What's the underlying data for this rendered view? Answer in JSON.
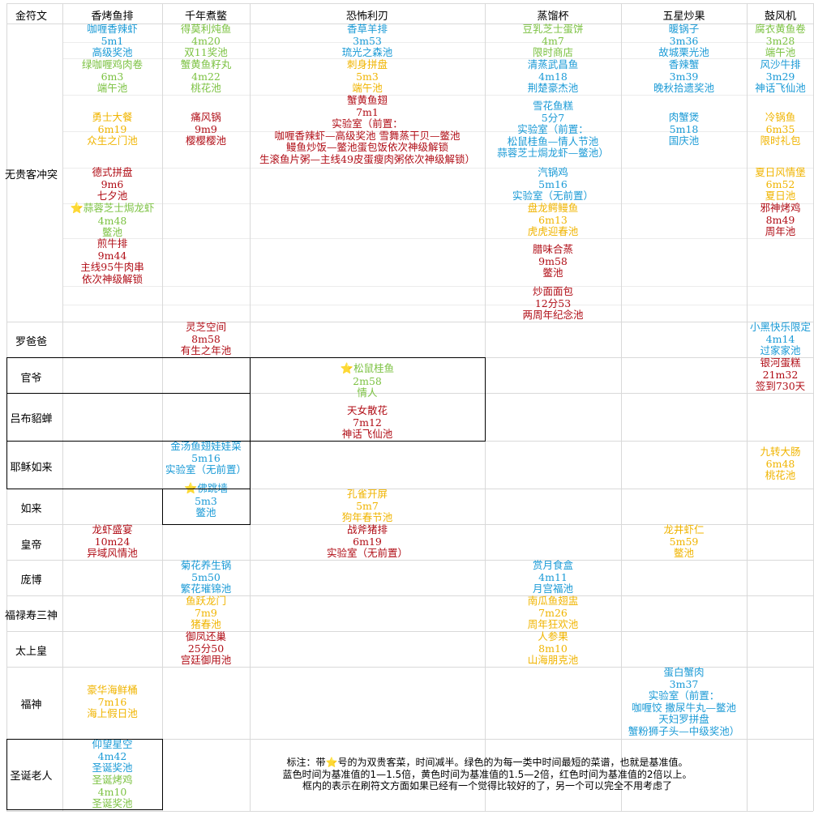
{
  "colors": {
    "blue": "#1a9ad6",
    "green": "#7cc242",
    "gold": "#f0b400",
    "red": "#b00d16",
    "star": "#f5c518",
    "grid": "#d9d9d9"
  },
  "header": {
    "corner": "金符文",
    "columns": [
      "香烤鱼排",
      "千年煮鳖",
      "恐怖利刃",
      "蒸馏杯",
      "五星炒果",
      "鼓风机"
    ]
  },
  "rows": [
    "无贵客冲突",
    "罗爸爸",
    "官爷",
    "吕布貂蝉",
    "耶稣如来",
    "如来",
    "皇帝",
    "庞博",
    "福禄寿三神",
    "太上皇",
    "福神",
    "圣诞老人"
  ],
  "entries": [
    {
      "color": "blue",
      "lines": [
        "咖喱香辣虾",
        "5m1",
        "高级奖池"
      ]
    },
    {
      "color": "green",
      "lines": [
        "绿咖喱鸡肉卷",
        "6m3",
        "端午池"
      ]
    },
    {
      "color": "gold",
      "lines": [
        "勇士大餐",
        "6m19",
        "众生之门池"
      ]
    },
    {
      "color": "red",
      "lines": [
        "德式拼盘",
        "9m6",
        "七夕池"
      ]
    },
    {
      "color": "green",
      "star": true,
      "lines": [
        "蒜蓉芝士焗龙虾",
        "4m48",
        "鳖池"
      ]
    },
    {
      "color": "red",
      "lines": [
        "煎牛排",
        "9m44",
        "主线95牛肉串",
        "依次神级解锁"
      ]
    },
    {
      "color": "green",
      "lines": [
        "得莫利炖鱼",
        "4m20",
        "双11奖池"
      ]
    },
    {
      "color": "green",
      "lines": [
        "蟹黄鱼籽丸",
        "4m22",
        "桃花池"
      ]
    },
    {
      "color": "red",
      "lines": [
        "痛风锅",
        "9m9",
        "樱樱樱池"
      ]
    },
    {
      "color": "blue",
      "lines": [
        "香草羊排",
        "3m53",
        "琉光之森池"
      ]
    },
    {
      "color": "gold",
      "lines": [
        "刺身拼盘",
        "5m3",
        "端午池"
      ]
    },
    {
      "color": "red",
      "lines": [
        "蟹黄鱼翅",
        "7m1",
        "实验室（前置：",
        "咖喱香辣虾—高级奖池 雪舞蒸干贝—鳖池",
        "鳗鱼炒饭—鳖池蛋包饭依次神级解锁",
        "生滚鱼片粥—主线49皮蛋瘦肉粥依次神级解锁）"
      ]
    },
    {
      "color": "green",
      "lines": [
        "豆乳芝士蛋饼",
        "4m7",
        "限时商店"
      ]
    },
    {
      "color": "blue",
      "lines": [
        "清蒸武昌鱼",
        "4m18",
        "荆楚豪杰池"
      ]
    },
    {
      "color": "blue",
      "lines": [
        "雪花鱼糕",
        "5分7",
        "实验室（前置：",
        "松鼠桂鱼—情人节池",
        "蒜蓉芝士焗龙虾—鳖池）"
      ]
    },
    {
      "color": "blue",
      "lines": [
        "汽锅鸡",
        "5m16",
        "实验室（无前置）"
      ]
    },
    {
      "color": "gold",
      "lines": [
        "盘龙鳄鳗鱼",
        "6m13",
        "虎虎迎春池"
      ]
    },
    {
      "color": "red",
      "lines": [
        "腊味合蒸",
        "9m58",
        "鳖池"
      ]
    },
    {
      "color": "red",
      "lines": [
        "炒面面包",
        "12分53",
        "两周年纪念池"
      ]
    },
    {
      "color": "blue",
      "lines": [
        "暖锅子",
        "3m36",
        "故城栗光池"
      ]
    },
    {
      "color": "blue",
      "lines": [
        "香辣蟹",
        "3m39",
        "晚秋拾遗奖池"
      ]
    },
    {
      "color": "blue",
      "lines": [
        "肉蟹煲",
        "5m18",
        "国庆池"
      ]
    },
    {
      "color": "green",
      "lines": [
        "腐衣黄鱼卷",
        "3m28",
        "端午池"
      ]
    },
    {
      "color": "blue",
      "lines": [
        "风沙牛排",
        "3m29",
        "神话飞仙池"
      ]
    },
    {
      "color": "gold",
      "lines": [
        "冷锅鱼",
        "6m35",
        "限时礼包"
      ]
    },
    {
      "color": "gold",
      "lines": [
        "夏日风情堡",
        "6m52",
        "夏日池"
      ]
    },
    {
      "color": "red",
      "lines": [
        "邪神烤鸡",
        "8m49",
        "周年池"
      ]
    },
    {
      "color": "red",
      "lines": [
        "灵芝空间",
        "8m58",
        "有生之年池"
      ]
    },
    {
      "color": "blue",
      "lines": [
        "小黑快乐限定",
        "4m14",
        "过家家池"
      ]
    },
    {
      "color": "red",
      "lines": [
        "银河蛋糕",
        "21m32",
        "签到730天"
      ]
    },
    {
      "color": "green",
      "star": true,
      "lines": [
        "松鼠桂鱼",
        "2m58",
        "情人"
      ]
    },
    {
      "color": "red",
      "lines": [
        "天女散花",
        "7m12",
        "神话飞仙池"
      ]
    },
    {
      "color": "blue",
      "lines": [
        "金汤鱼翅娃娃菜",
        "5m16",
        "实验室（无前置）"
      ]
    },
    {
      "color": "gold",
      "lines": [
        "九转大肠",
        "6m48",
        "桃花池"
      ]
    },
    {
      "color": "blue",
      "star": true,
      "lines": [
        "佛跳墙",
        "5m3",
        "鳖池"
      ]
    },
    {
      "color": "gold",
      "lines": [
        "孔雀开屏",
        "5m7",
        "狗年春节池"
      ]
    },
    {
      "color": "red",
      "lines": [
        "龙虾盛宴",
        "10m24",
        "异域风情池"
      ]
    },
    {
      "color": "red",
      "lines": [
        "战斧猪排",
        "6m19",
        "实验室（无前置）"
      ]
    },
    {
      "color": "gold",
      "lines": [
        "龙井虾仁",
        "5m59",
        "鳖池"
      ]
    },
    {
      "color": "blue",
      "lines": [
        "菊花养生锅",
        "5m50",
        "繁花璀锦池"
      ]
    },
    {
      "color": "blue",
      "lines": [
        "赏月食盒",
        "4m11",
        "月宫福池"
      ]
    },
    {
      "color": "gold",
      "lines": [
        "鱼跃龙门",
        "7m9",
        "猪春池"
      ]
    },
    {
      "color": "gold",
      "lines": [
        "南瓜鱼翅盅",
        "7m26",
        "周年狂欢池"
      ]
    },
    {
      "color": "red",
      "lines": [
        "御凤还巢",
        "25分50",
        "宫廷御用池"
      ]
    },
    {
      "color": "gold",
      "lines": [
        "人参果",
        "8m10",
        "山海朋克池"
      ]
    },
    {
      "color": "gold",
      "lines": [
        "豪华海鲜桶",
        "7m16",
        "海上假日池"
      ]
    },
    {
      "color": "blue",
      "lines": [
        "蛋白蟹肉",
        "3m37",
        "实验室（前置：",
        "咖喱饺 撒尿牛丸—鳖池",
        "天妇罗拼盘",
        "蟹粉狮子头—中级奖池）"
      ]
    },
    {
      "color": "blue",
      "lines": [
        "仰望星空",
        "4m42",
        "圣诞奖池"
      ]
    },
    {
      "color": "green",
      "lines": [
        "圣诞烤鸡",
        "4m10",
        "圣诞奖池"
      ]
    }
  ],
  "notes": [
    "标注：带⭐号的为双贵客菜，时间减半。绿色的为每一类中时间最短的菜谱，也就是基准值。",
    "蓝色时间为基准值的1—1.5倍，黄色时间为基准值的1.5—2倍，红色时间为基准值的2倍以上。",
    "框内的表示在刷符文方面如果已经有一个觉得比较好的了，另一个可以完全不用考虑了"
  ]
}
